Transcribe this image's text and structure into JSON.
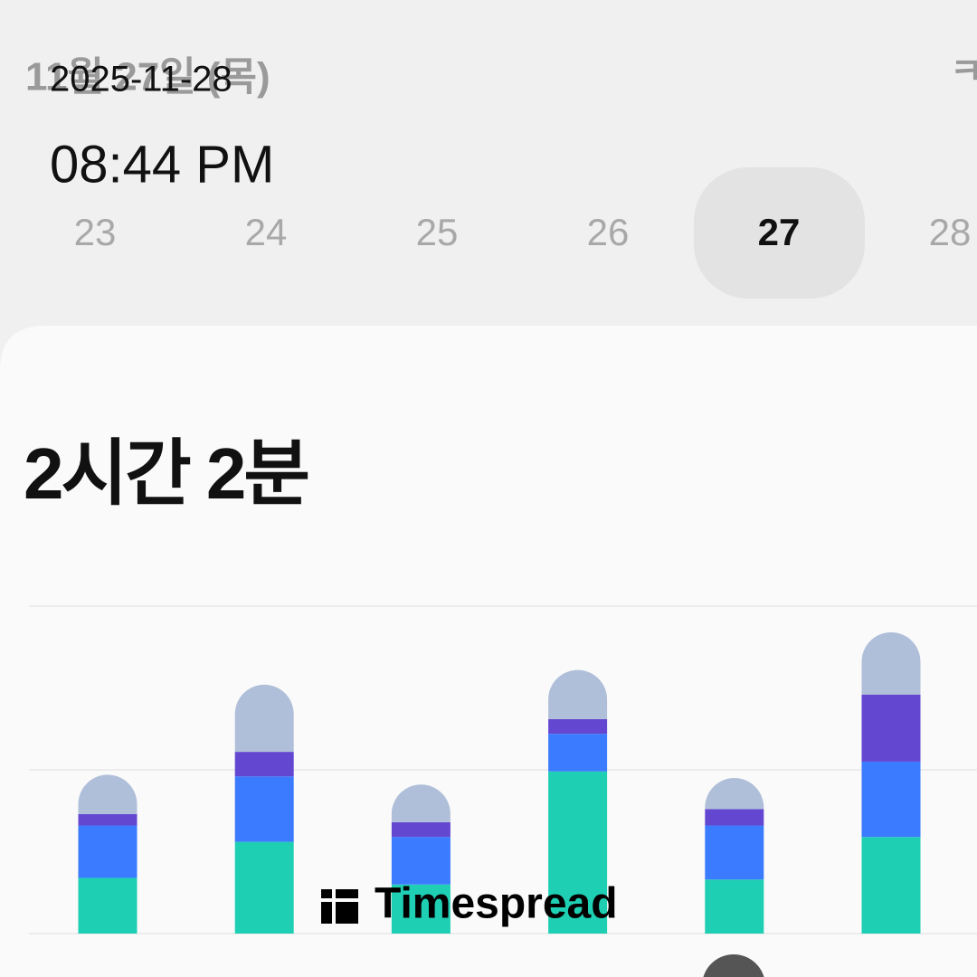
{
  "header": {
    "date_label": "11월 27일 (목)",
    "right_cut_text": "ㅋ",
    "overlay_date": "2025-11-28",
    "overlay_time": "08:44 PM"
  },
  "dates": [
    {
      "label": "23",
      "selected": false
    },
    {
      "label": "24",
      "selected": false
    },
    {
      "label": "25",
      "selected": false
    },
    {
      "label": "26",
      "selected": false
    },
    {
      "label": "27",
      "selected": true
    },
    {
      "label": "28",
      "selected": false
    }
  ],
  "summary": {
    "duration": "2시간 2분"
  },
  "watermark": "Timespread",
  "chart_data": {
    "type": "stacked_bar",
    "categories": [
      null,
      null,
      null,
      null,
      null,
      null
    ],
    "series": [
      {
        "color": "#1ecfb3",
        "values": [
          0.34,
          0.56,
          0.3,
          0.99,
          0.33,
          0.59
        ]
      },
      {
        "color": "#3b7bff",
        "values": [
          0.32,
          0.4,
          0.29,
          0.23,
          0.33,
          0.46
        ]
      },
      {
        "color": "#6347d1",
        "values": [
          0.07,
          0.15,
          0.09,
          0.09,
          0.1,
          0.41
        ]
      },
      {
        "color": "#b0bfd9",
        "values": [
          0.24,
          0.41,
          0.23,
          0.3,
          0.19,
          0.38
        ]
      }
    ],
    "ylim": [
      0,
      2
    ],
    "yticks": [
      0,
      1,
      2
    ],
    "grid": true
  }
}
